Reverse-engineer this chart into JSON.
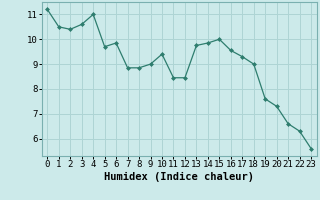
{
  "x": [
    0,
    1,
    2,
    3,
    4,
    5,
    6,
    7,
    8,
    9,
    10,
    11,
    12,
    13,
    14,
    15,
    16,
    17,
    18,
    19,
    20,
    21,
    22,
    23
  ],
  "y": [
    11.2,
    10.5,
    10.4,
    10.6,
    11.0,
    9.7,
    9.85,
    8.85,
    8.85,
    9.0,
    9.4,
    8.45,
    8.45,
    9.75,
    9.85,
    10.0,
    9.55,
    9.3,
    9.0,
    7.6,
    7.3,
    6.6,
    6.3,
    5.6
  ],
  "line_color": "#2e7d6e",
  "marker_color": "#2e7d6e",
  "bg_color": "#cceaea",
  "grid_color": "#aed4d4",
  "xlabel": "Humidex (Indice chaleur)",
  "ylim": [
    5.3,
    11.5
  ],
  "xlim": [
    -0.5,
    23.5
  ],
  "yticks": [
    6,
    7,
    8,
    9,
    10,
    11
  ],
  "xticks": [
    0,
    1,
    2,
    3,
    4,
    5,
    6,
    7,
    8,
    9,
    10,
    11,
    12,
    13,
    14,
    15,
    16,
    17,
    18,
    19,
    20,
    21,
    22,
    23
  ],
  "tick_fontsize": 6.5,
  "xlabel_fontsize": 7.5,
  "linewidth": 0.9,
  "markersize": 2.0
}
